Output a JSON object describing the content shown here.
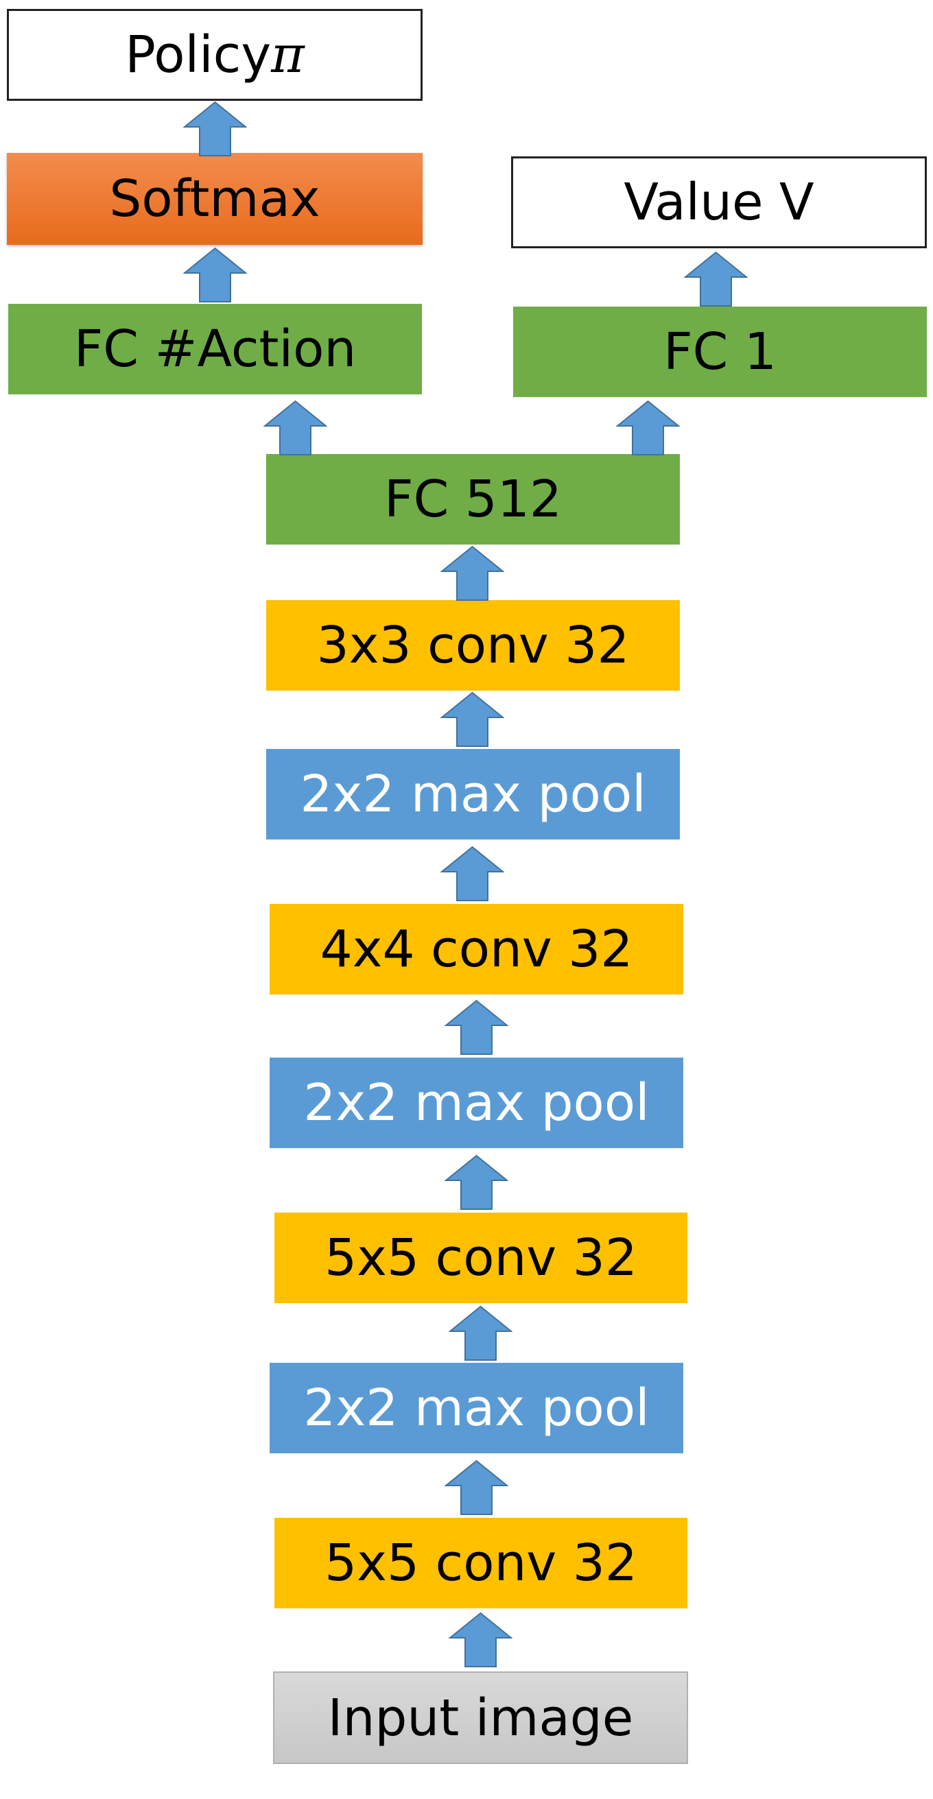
{
  "colors": {
    "conv": "#ffc000",
    "pool": "#5b9bd5",
    "fc": "#70ad47",
    "softmax": "#ed7d31",
    "input": "#d0d0d0",
    "arrow": "#5b9bd5"
  },
  "nodes": {
    "policy_label": "Policy ",
    "policy_symbol": "π",
    "softmax": "Softmax",
    "value": "Value V",
    "fc_action": "FC #Action",
    "fc_1": "FC 1",
    "fc_512": "FC 512",
    "conv3": "3x3 conv 32",
    "pool3": "2x2 max pool",
    "conv2": "4x4 conv 32",
    "pool2": "2x2 max pool",
    "conv1b": "5x5 conv 32",
    "pool1": "2x2 max pool",
    "conv1": "5x5 conv 32",
    "input": "Input image"
  }
}
